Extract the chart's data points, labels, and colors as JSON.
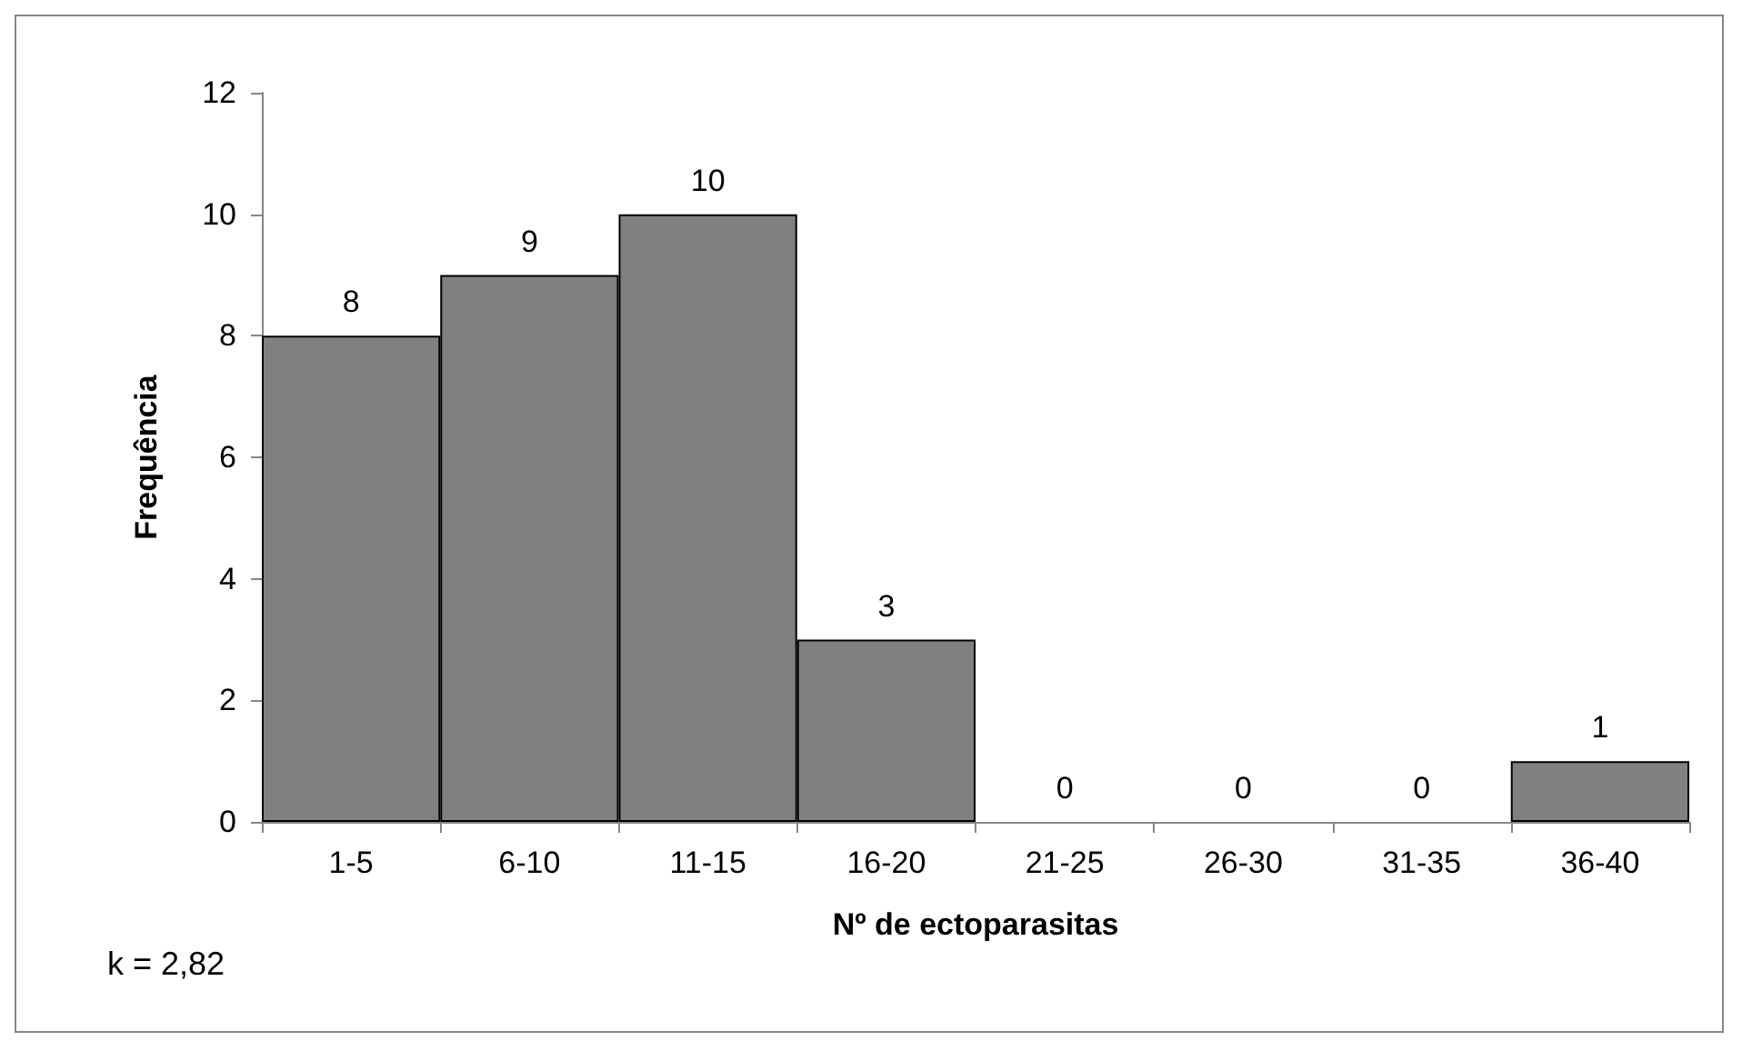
{
  "chart_data": {
    "type": "bar",
    "xlabel": "Nº de ectoparasitas",
    "ylabel": "Frequência",
    "categories": [
      "1-5",
      "6-10",
      "11-15",
      "16-20",
      "21-25",
      "26-30",
      "31-35",
      "36-40"
    ],
    "values": [
      8,
      9,
      10,
      3,
      0,
      0,
      0,
      1
    ],
    "color": "#808080",
    "ylim": [
      0,
      12
    ],
    "yticks": [
      0,
      2,
      4,
      6,
      8,
      10,
      12
    ],
    "grid": false,
    "data_labels": true,
    "annotations": [
      "k = 2,82"
    ]
  }
}
